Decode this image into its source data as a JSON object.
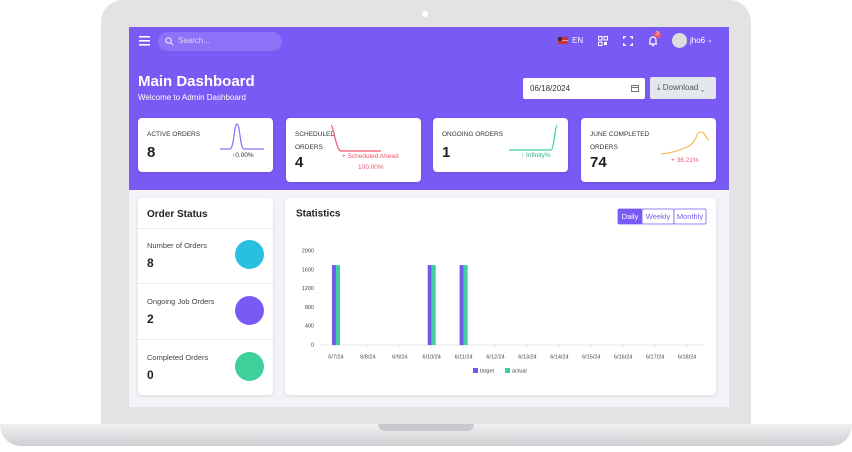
{
  "topbar": {
    "search_placeholder": "Search...",
    "language": "EN",
    "notification_count": 3,
    "username": "jho6"
  },
  "header": {
    "title": "Main Dashboard",
    "subtitle": "Welcome to Admin Dashboard",
    "date": "06/18/2024",
    "download": "Download"
  },
  "cards": [
    {
      "label": "ACTIVE ORDERS",
      "value": 8,
      "change": "↑0.00%"
    },
    {
      "label": "SCHEDULED ORDERS",
      "value": 4,
      "change": "+ Scheduled Ahead",
      "change_value": "100.00%"
    },
    {
      "label": "ONGOING ORDERS",
      "value": 1,
      "change": "↑ Infinity%"
    },
    {
      "label": "JUNE COMPLETED ORDERS",
      "value": 74,
      "change": "+ 36.21%"
    }
  ],
  "order_status": {
    "title": "Order Status",
    "items": [
      {
        "label": "Number of Orders",
        "value": 8
      },
      {
        "label": "Ongoing Job Orders",
        "value": 2
      },
      {
        "label": "Completed Orders",
        "value": 0
      }
    ]
  },
  "chart_data": {
    "type": "bar",
    "title": "Statistics",
    "tabs": [
      "Daily",
      "Weekly",
      "Monthly"
    ],
    "categories": [
      "6/7/24",
      "6/8/24",
      "6/9/24",
      "6/10/24",
      "6/11/24",
      "6/12/24",
      "6/13/24",
      "6/14/24",
      "6/15/24",
      "6/16/24",
      "6/17/24",
      "6/18/24"
    ],
    "series": [
      {
        "name": "target",
        "color": "#6c5ce7",
        "values": [
          1700,
          0,
          0,
          1700,
          1700,
          0,
          0,
          0,
          0,
          0,
          0,
          0
        ]
      },
      {
        "name": "actual",
        "color": "#3ecf9a",
        "values": [
          1700,
          0,
          0,
          1700,
          1700,
          0,
          0,
          0,
          0,
          0,
          0,
          0
        ]
      }
    ],
    "ylim": [
      0,
      2000
    ],
    "yticks": [
      0,
      400,
      800,
      1200,
      1600,
      2000
    ],
    "grid": false
  }
}
